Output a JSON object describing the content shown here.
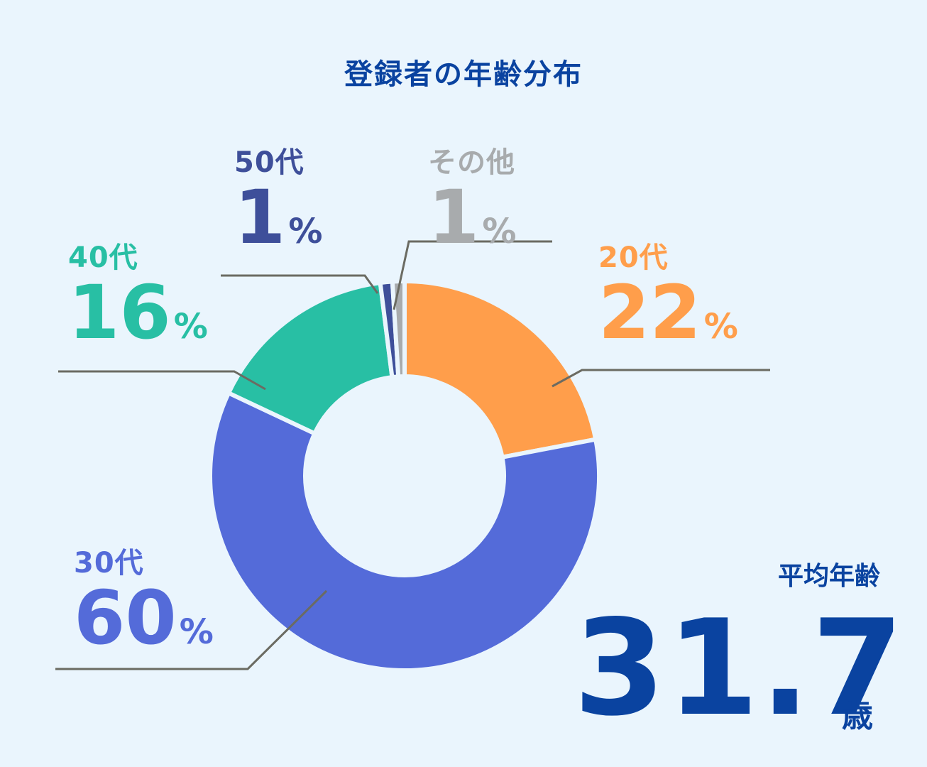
{
  "chart_data": {
    "type": "pie",
    "title": "登録者の年齢分布",
    "unit": "%",
    "slices": [
      {
        "label": "20代",
        "value": 22,
        "color": "#ff9e4b"
      },
      {
        "label": "30代",
        "value": 60,
        "color": "#546bd9"
      },
      {
        "label": "40代",
        "value": 16,
        "color": "#28bfa4"
      },
      {
        "label": "50代",
        "value": 1,
        "color": "#3e4f9a"
      },
      {
        "label": "その他",
        "value": 1,
        "color": "#a8abad"
      }
    ]
  },
  "average": {
    "label": "平均年齢",
    "value": "31.7",
    "unit": "歳"
  },
  "colors": {
    "background": "#eaf5fd",
    "title": "#0a43a0",
    "leader_line": "#6b6b62"
  }
}
